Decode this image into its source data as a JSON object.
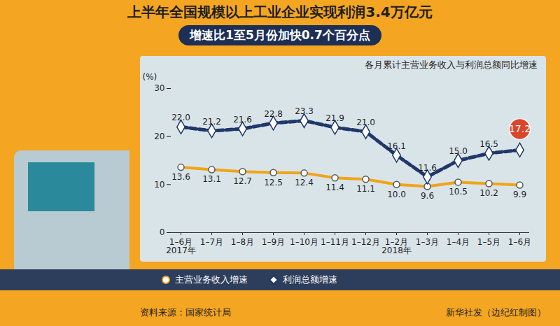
{
  "chart_data": {
    "type": "line",
    "headline": "上半年全国规模以上工业企业实现利润3.4万亿元",
    "subtitle": "增速比1至5月份加快0.7个百分点",
    "title": "各月累计主营业务收入与利润总额同比增速",
    "y_label": "(%)",
    "categories": [
      "1–6月\n2017年",
      "1–7月",
      "1–8月",
      "1–9月",
      "1–10月",
      "1–11月",
      "1–12月",
      "1–2月\n2018年",
      "1–3月",
      "1–4月",
      "1–5月",
      "1–6月"
    ],
    "series": [
      {
        "name": "主营业务收入增速",
        "color": "#f0a418",
        "marker": "circle",
        "line_style": "solid",
        "values": [
          13.6,
          13.1,
          12.7,
          12.5,
          12.4,
          11.4,
          11.1,
          10.0,
          9.6,
          10.5,
          10.2,
          9.9
        ],
        "value_labels": [
          "13.6",
          "13.1",
          "12.7",
          "12.5",
          "12.4",
          "11.4",
          "11.1",
          "10.0",
          "9.6",
          "10.5",
          "10.2",
          "9.9"
        ]
      },
      {
        "name": "利润总额增速",
        "color": "#1f3769",
        "marker": "diamond",
        "line_style": "dashed",
        "values": [
          22.0,
          21.2,
          21.6,
          22.8,
          23.3,
          21.9,
          21.0,
          16.1,
          11.6,
          15.0,
          16.5,
          17.2
        ],
        "value_labels": [
          "22.0",
          "21.2",
          "21.6",
          "22.8",
          "23.3",
          "21.9",
          "21.0",
          "16.1",
          "11.6",
          "15.0",
          "16.5",
          "17.2"
        ]
      }
    ],
    "ylim": [
      0,
      30
    ],
    "yticks": [
      0,
      10,
      20,
      30
    ],
    "grid": false,
    "data_labels": true,
    "legend": "bottom",
    "source": "资料来源：国家统计局",
    "credit": "新华社发（边纪红制图）"
  }
}
